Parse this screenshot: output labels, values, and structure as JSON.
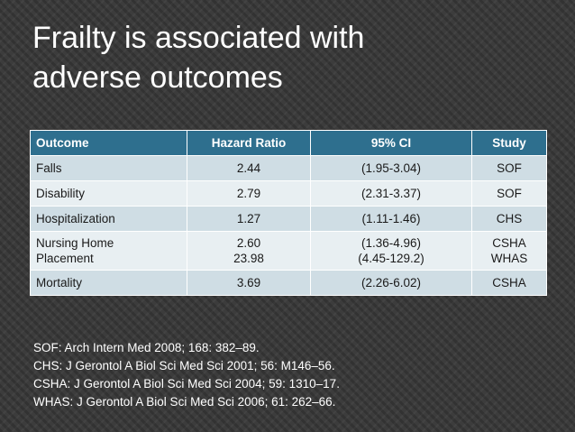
{
  "title_lines": [
    "Frailty is associated with",
    "adverse outcomes"
  ],
  "table": {
    "headers": [
      "Outcome",
      "Hazard Ratio",
      "95% CI",
      "Study"
    ],
    "rows": [
      {
        "outcome": [
          "Falls"
        ],
        "hr": [
          "2.44"
        ],
        "ci": [
          "(1.95-3.04)"
        ],
        "study": [
          "SOF"
        ]
      },
      {
        "outcome": [
          "Disability"
        ],
        "hr": [
          "2.79"
        ],
        "ci": [
          "(2.31-3.37)"
        ],
        "study": [
          "SOF"
        ]
      },
      {
        "outcome": [
          "Hospitalization"
        ],
        "hr": [
          "1.27"
        ],
        "ci": [
          "(1.11-1.46)"
        ],
        "study": [
          "CHS"
        ]
      },
      {
        "outcome": [
          "Nursing Home",
          "Placement"
        ],
        "hr": [
          "2.60",
          "23.98"
        ],
        "ci": [
          "(1.36-4.96)",
          "(4.45-129.2)"
        ],
        "study": [
          "CSHA",
          "WHAS"
        ]
      },
      {
        "outcome": [
          "Mortality"
        ],
        "hr": [
          "3.69"
        ],
        "ci": [
          "(2.26-6.02)"
        ],
        "study": [
          "CSHA"
        ]
      }
    ]
  },
  "references": [
    "SOF: Arch Intern Med 2008; 168: 382–89.",
    "CHS: J Gerontol A Biol Sci Med Sci 2001; 56: M146–56.",
    "CSHA: J Gerontol A Biol Sci Med Sci 2004; 59: 1310–17.",
    "WHAS: J Gerontol A Biol Sci Med Sci 2006; 61: 262–66."
  ],
  "colors": {
    "header_bg": "#2e6f8e",
    "row_odd": "#cfdde4",
    "row_even": "#e8eff2",
    "slide_bg": "#3c3c3c",
    "text_light": "#ffffff"
  }
}
